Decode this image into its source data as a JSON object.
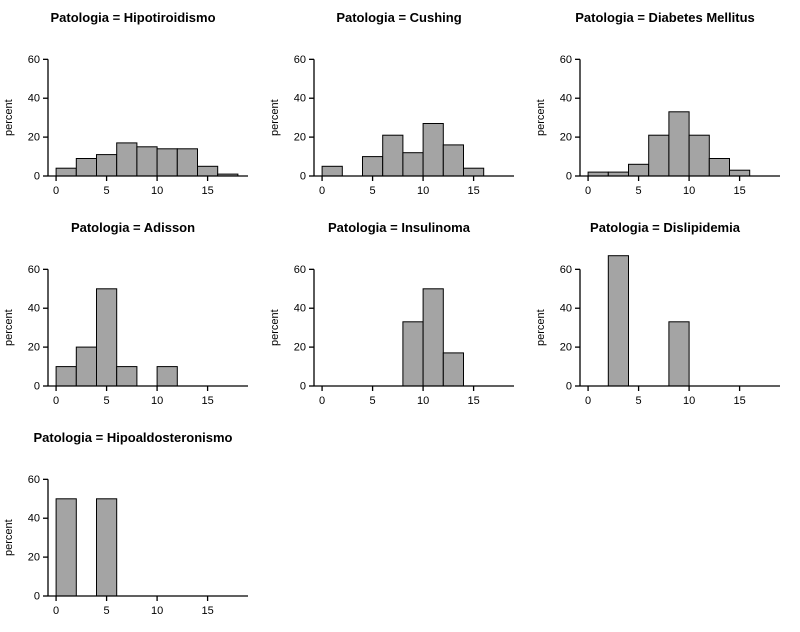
{
  "figure": {
    "background": "#ffffff",
    "description": "Trellis of histograms of percent by Patologia"
  },
  "colors": {
    "bar_fill": "#a4a4a4",
    "bar_stroke": "#000000",
    "axis": "#000000",
    "text": "#000000"
  },
  "chart_data": [
    {
      "type": "bar",
      "title": "Patologia = Hipotiroidismo",
      "ylabel": "percent",
      "xlabel": "",
      "xlim": [
        0,
        18
      ],
      "ylim": [
        0,
        70
      ],
      "xticks": [
        0,
        5,
        10,
        15
      ],
      "yticks": [
        0,
        20,
        40,
        60
      ],
      "bin_width": 2,
      "bins": [
        {
          "x0": 0,
          "x1": 2,
          "value": 4
        },
        {
          "x0": 2,
          "x1": 4,
          "value": 9
        },
        {
          "x0": 4,
          "x1": 6,
          "value": 11
        },
        {
          "x0": 6,
          "x1": 8,
          "value": 17
        },
        {
          "x0": 8,
          "x1": 10,
          "value": 15
        },
        {
          "x0": 10,
          "x1": 12,
          "value": 14
        },
        {
          "x0": 12,
          "x1": 14,
          "value": 14
        },
        {
          "x0": 14,
          "x1": 16,
          "value": 5
        },
        {
          "x0": 16,
          "x1": 18,
          "value": 1
        }
      ]
    },
    {
      "type": "bar",
      "title": "Patologia = Cushing",
      "ylabel": "percent",
      "xlabel": "",
      "xlim": [
        0,
        18
      ],
      "ylim": [
        0,
        70
      ],
      "xticks": [
        0,
        5,
        10,
        15
      ],
      "yticks": [
        0,
        20,
        40,
        60
      ],
      "bin_width": 2,
      "bins": [
        {
          "x0": 0,
          "x1": 2,
          "value": 5
        },
        {
          "x0": 4,
          "x1": 6,
          "value": 10
        },
        {
          "x0": 6,
          "x1": 8,
          "value": 21
        },
        {
          "x0": 8,
          "x1": 10,
          "value": 12
        },
        {
          "x0": 10,
          "x1": 12,
          "value": 27
        },
        {
          "x0": 12,
          "x1": 14,
          "value": 16
        },
        {
          "x0": 14,
          "x1": 16,
          "value": 4
        }
      ]
    },
    {
      "type": "bar",
      "title": "Patologia = Diabetes Mellitus",
      "ylabel": "percent",
      "xlabel": "",
      "xlim": [
        0,
        18
      ],
      "ylim": [
        0,
        70
      ],
      "xticks": [
        0,
        5,
        10,
        15
      ],
      "yticks": [
        0,
        20,
        40,
        60
      ],
      "bin_width": 2,
      "bins": [
        {
          "x0": 0,
          "x1": 2,
          "value": 2
        },
        {
          "x0": 2,
          "x1": 4,
          "value": 2
        },
        {
          "x0": 4,
          "x1": 6,
          "value": 6
        },
        {
          "x0": 6,
          "x1": 8,
          "value": 21
        },
        {
          "x0": 8,
          "x1": 10,
          "value": 33
        },
        {
          "x0": 10,
          "x1": 12,
          "value": 21
        },
        {
          "x0": 12,
          "x1": 14,
          "value": 9
        },
        {
          "x0": 14,
          "x1": 16,
          "value": 3
        }
      ]
    },
    {
      "type": "bar",
      "title": "Patologia = Adisson",
      "ylabel": "percent",
      "xlabel": "",
      "xlim": [
        0,
        18
      ],
      "ylim": [
        0,
        70
      ],
      "xticks": [
        0,
        5,
        10,
        15
      ],
      "yticks": [
        0,
        20,
        40,
        60
      ],
      "bin_width": 2,
      "bins": [
        {
          "x0": 0,
          "x1": 2,
          "value": 10
        },
        {
          "x0": 2,
          "x1": 4,
          "value": 20
        },
        {
          "x0": 4,
          "x1": 6,
          "value": 50
        },
        {
          "x0": 6,
          "x1": 8,
          "value": 10
        },
        {
          "x0": 10,
          "x1": 12,
          "value": 10
        }
      ]
    },
    {
      "type": "bar",
      "title": "Patologia = Insulinoma",
      "ylabel": "percent",
      "xlabel": "",
      "xlim": [
        0,
        18
      ],
      "ylim": [
        0,
        70
      ],
      "xticks": [
        0,
        5,
        10,
        15
      ],
      "yticks": [
        0,
        20,
        40,
        60
      ],
      "bin_width": 2,
      "bins": [
        {
          "x0": 8,
          "x1": 10,
          "value": 33
        },
        {
          "x0": 10,
          "x1": 12,
          "value": 50
        },
        {
          "x0": 12,
          "x1": 14,
          "value": 17
        }
      ]
    },
    {
      "type": "bar",
      "title": "Patologia = Dislipidemia",
      "ylabel": "percent",
      "xlabel": "",
      "xlim": [
        0,
        18
      ],
      "ylim": [
        0,
        70
      ],
      "xticks": [
        0,
        5,
        10,
        15
      ],
      "yticks": [
        0,
        20,
        40,
        60
      ],
      "bin_width": 2,
      "bins": [
        {
          "x0": 2,
          "x1": 4,
          "value": 67
        },
        {
          "x0": 8,
          "x1": 10,
          "value": 33
        }
      ]
    },
    {
      "type": "bar",
      "title": "Patologia = Hipoaldosteronismo",
      "ylabel": "percent",
      "xlabel": "",
      "xlim": [
        0,
        18
      ],
      "ylim": [
        0,
        70
      ],
      "xticks": [
        0,
        5,
        10,
        15
      ],
      "yticks": [
        0,
        20,
        40,
        60
      ],
      "bin_width": 2,
      "bins": [
        {
          "x0": 0,
          "x1": 2,
          "value": 50
        },
        {
          "x0": 4,
          "x1": 6,
          "value": 50
        }
      ]
    }
  ]
}
